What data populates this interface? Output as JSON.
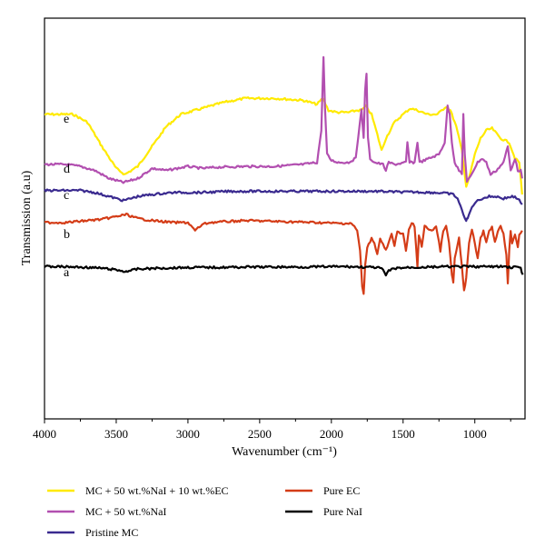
{
  "chart_data": {
    "type": "line",
    "title": "",
    "xlabel": "Wavenumber (cm⁻¹)",
    "ylabel": "Transmission (a.u)",
    "xlim": [
      4000,
      650
    ],
    "x_reversed": true,
    "grid": false,
    "legend_position": "bottom",
    "x_ticks": [
      4000,
      3500,
      3000,
      2500,
      2000,
      1500,
      1000
    ],
    "series": [
      {
        "name": "MC + 50 wt.%NaI + 10 wt.%EC",
        "trace_label": "e",
        "color": "#FFEA00",
        "points": [
          [
            4000,
            0.76
          ],
          [
            3900,
            0.76
          ],
          [
            3800,
            0.76
          ],
          [
            3700,
            0.74
          ],
          [
            3600,
            0.68
          ],
          [
            3500,
            0.625
          ],
          [
            3440,
            0.61
          ],
          [
            3350,
            0.63
          ],
          [
            3250,
            0.68
          ],
          [
            3150,
            0.73
          ],
          [
            3050,
            0.76
          ],
          [
            2950,
            0.77
          ],
          [
            2850,
            0.78
          ],
          [
            2750,
            0.79
          ],
          [
            2600,
            0.8
          ],
          [
            2400,
            0.8
          ],
          [
            2200,
            0.795
          ],
          [
            2100,
            0.785
          ],
          [
            2060,
            0.8
          ],
          [
            2020,
            0.77
          ],
          [
            1960,
            0.765
          ],
          [
            1880,
            0.765
          ],
          [
            1820,
            0.77
          ],
          [
            1790,
            0.77
          ],
          [
            1760,
            0.78
          ],
          [
            1720,
            0.76
          ],
          [
            1680,
            0.71
          ],
          [
            1650,
            0.67
          ],
          [
            1620,
            0.7
          ],
          [
            1560,
            0.74
          ],
          [
            1500,
            0.76
          ],
          [
            1450,
            0.775
          ],
          [
            1400,
            0.77
          ],
          [
            1330,
            0.76
          ],
          [
            1260,
            0.76
          ],
          [
            1200,
            0.78
          ],
          [
            1170,
            0.77
          ],
          [
            1130,
            0.73
          ],
          [
            1090,
            0.67
          ],
          [
            1060,
            0.58
          ],
          [
            1040,
            0.6
          ],
          [
            1000,
            0.66
          ],
          [
            960,
            0.7
          ],
          [
            920,
            0.72
          ],
          [
            880,
            0.725
          ],
          [
            820,
            0.7
          ],
          [
            760,
            0.69
          ],
          [
            720,
            0.65
          ],
          [
            690,
            0.64
          ],
          [
            670,
            0.56
          ]
        ]
      },
      {
        "name": "MC + 50 wt.%NaI",
        "trace_label": "d",
        "color": "#B24FB0",
        "points": [
          [
            4000,
            0.635
          ],
          [
            3850,
            0.635
          ],
          [
            3750,
            0.63
          ],
          [
            3650,
            0.62
          ],
          [
            3550,
            0.6
          ],
          [
            3450,
            0.59
          ],
          [
            3350,
            0.6
          ],
          [
            3250,
            0.625
          ],
          [
            3150,
            0.62
          ],
          [
            3000,
            0.63
          ],
          [
            2900,
            0.625
          ],
          [
            2800,
            0.628
          ],
          [
            2600,
            0.63
          ],
          [
            2400,
            0.63
          ],
          [
            2200,
            0.635
          ],
          [
            2100,
            0.64
          ],
          [
            2070,
            0.72
          ],
          [
            2055,
            0.905
          ],
          [
            2045,
            0.78
          ],
          [
            2030,
            0.66
          ],
          [
            2000,
            0.645
          ],
          [
            1950,
            0.64
          ],
          [
            1880,
            0.64
          ],
          [
            1830,
            0.65
          ],
          [
            1805,
            0.73
          ],
          [
            1790,
            0.77
          ],
          [
            1775,
            0.7
          ],
          [
            1765,
            0.82
          ],
          [
            1755,
            0.86
          ],
          [
            1745,
            0.7
          ],
          [
            1730,
            0.65
          ],
          [
            1700,
            0.64
          ],
          [
            1640,
            0.635
          ],
          [
            1620,
            0.62
          ],
          [
            1600,
            0.64
          ],
          [
            1560,
            0.635
          ],
          [
            1480,
            0.64
          ],
          [
            1470,
            0.69
          ],
          [
            1455,
            0.64
          ],
          [
            1420,
            0.64
          ],
          [
            1400,
            0.69
          ],
          [
            1385,
            0.64
          ],
          [
            1320,
            0.65
          ],
          [
            1250,
            0.66
          ],
          [
            1210,
            0.69
          ],
          [
            1190,
            0.78
          ],
          [
            1175,
            0.76
          ],
          [
            1160,
            0.69
          ],
          [
            1140,
            0.64
          ],
          [
            1110,
            0.62
          ],
          [
            1090,
            0.61
          ],
          [
            1080,
            0.76
          ],
          [
            1070,
            0.66
          ],
          [
            1055,
            0.59
          ],
          [
            1040,
            0.6
          ],
          [
            1010,
            0.62
          ],
          [
            980,
            0.64
          ],
          [
            950,
            0.65
          ],
          [
            920,
            0.64
          ],
          [
            890,
            0.61
          ],
          [
            850,
            0.62
          ],
          [
            800,
            0.64
          ],
          [
            770,
            0.68
          ],
          [
            750,
            0.62
          ],
          [
            720,
            0.65
          ],
          [
            700,
            0.62
          ],
          [
            680,
            0.62
          ],
          [
            670,
            0.6
          ]
        ]
      },
      {
        "name": "Pristine MC",
        "trace_label": "c",
        "color": "#3A2A8F",
        "points": [
          [
            4000,
            0.57
          ],
          [
            3850,
            0.57
          ],
          [
            3750,
            0.57
          ],
          [
            3650,
            0.565
          ],
          [
            3550,
            0.555
          ],
          [
            3450,
            0.545
          ],
          [
            3350,
            0.555
          ],
          [
            3250,
            0.56
          ],
          [
            3100,
            0.565
          ],
          [
            2900,
            0.565
          ],
          [
            2700,
            0.568
          ],
          [
            2500,
            0.568
          ],
          [
            2300,
            0.568
          ],
          [
            2100,
            0.568
          ],
          [
            1900,
            0.568
          ],
          [
            1700,
            0.568
          ],
          [
            1500,
            0.566
          ],
          [
            1400,
            0.566
          ],
          [
            1300,
            0.565
          ],
          [
            1200,
            0.563
          ],
          [
            1150,
            0.56
          ],
          [
            1120,
            0.55
          ],
          [
            1090,
            0.52
          ],
          [
            1060,
            0.495
          ],
          [
            1050,
            0.5
          ],
          [
            1030,
            0.52
          ],
          [
            1000,
            0.54
          ],
          [
            950,
            0.55
          ],
          [
            900,
            0.555
          ],
          [
            850,
            0.555
          ],
          [
            800,
            0.55
          ],
          [
            740,
            0.555
          ],
          [
            700,
            0.55
          ],
          [
            670,
            0.535
          ]
        ]
      },
      {
        "name": "Pure EC",
        "trace_label": "b",
        "color": "#D43C17",
        "points": [
          [
            4000,
            0.49
          ],
          [
            3850,
            0.49
          ],
          [
            3700,
            0.495
          ],
          [
            3600,
            0.498
          ],
          [
            3500,
            0.505
          ],
          [
            3430,
            0.51
          ],
          [
            3350,
            0.5
          ],
          [
            3250,
            0.495
          ],
          [
            3100,
            0.49
          ],
          [
            3000,
            0.49
          ],
          [
            2950,
            0.47
          ],
          [
            2900,
            0.485
          ],
          [
            2850,
            0.49
          ],
          [
            2600,
            0.495
          ],
          [
            2300,
            0.492
          ],
          [
            2100,
            0.49
          ],
          [
            1950,
            0.488
          ],
          [
            1860,
            0.488
          ],
          [
            1820,
            0.47
          ],
          [
            1800,
            0.42
          ],
          [
            1785,
            0.33
          ],
          [
            1775,
            0.31
          ],
          [
            1765,
            0.38
          ],
          [
            1750,
            0.43
          ],
          [
            1720,
            0.45
          ],
          [
            1700,
            0.44
          ],
          [
            1680,
            0.41
          ],
          [
            1660,
            0.45
          ],
          [
            1620,
            0.42
          ],
          [
            1580,
            0.46
          ],
          [
            1560,
            0.43
          ],
          [
            1540,
            0.47
          ],
          [
            1500,
            0.46
          ],
          [
            1480,
            0.42
          ],
          [
            1460,
            0.47
          ],
          [
            1440,
            0.49
          ],
          [
            1420,
            0.48
          ],
          [
            1400,
            0.38
          ],
          [
            1390,
            0.46
          ],
          [
            1370,
            0.43
          ],
          [
            1350,
            0.48
          ],
          [
            1300,
            0.47
          ],
          [
            1270,
            0.48
          ],
          [
            1240,
            0.42
          ],
          [
            1220,
            0.47
          ],
          [
            1200,
            0.48
          ],
          [
            1180,
            0.44
          ],
          [
            1160,
            0.36
          ],
          [
            1150,
            0.34
          ],
          [
            1140,
            0.4
          ],
          [
            1110,
            0.45
          ],
          [
            1090,
            0.38
          ],
          [
            1075,
            0.32
          ],
          [
            1060,
            0.35
          ],
          [
            1040,
            0.44
          ],
          [
            1020,
            0.47
          ],
          [
            1000,
            0.44
          ],
          [
            980,
            0.4
          ],
          [
            960,
            0.45
          ],
          [
            940,
            0.47
          ],
          [
            920,
            0.44
          ],
          [
            900,
            0.47
          ],
          [
            880,
            0.48
          ],
          [
            860,
            0.44
          ],
          [
            840,
            0.47
          ],
          [
            820,
            0.48
          ],
          [
            800,
            0.46
          ],
          [
            780,
            0.41
          ],
          [
            770,
            0.34
          ],
          [
            760,
            0.42
          ],
          [
            750,
            0.47
          ],
          [
            740,
            0.44
          ],
          [
            720,
            0.46
          ],
          [
            700,
            0.43
          ],
          [
            690,
            0.46
          ],
          [
            670,
            0.47
          ]
        ]
      },
      {
        "name": "Pure NaI",
        "trace_label": "a",
        "color": "#000000",
        "points": [
          [
            4000,
            0.38
          ],
          [
            3900,
            0.38
          ],
          [
            3800,
            0.379
          ],
          [
            3700,
            0.378
          ],
          [
            3600,
            0.376
          ],
          [
            3500,
            0.372
          ],
          [
            3450,
            0.368
          ],
          [
            3400,
            0.37
          ],
          [
            3350,
            0.374
          ],
          [
            3200,
            0.376
          ],
          [
            3000,
            0.378
          ],
          [
            2800,
            0.378
          ],
          [
            2600,
            0.379
          ],
          [
            2400,
            0.379
          ],
          [
            2200,
            0.379
          ],
          [
            2000,
            0.38
          ],
          [
            1900,
            0.38
          ],
          [
            1800,
            0.379
          ],
          [
            1700,
            0.378
          ],
          [
            1650,
            0.376
          ],
          [
            1620,
            0.358
          ],
          [
            1600,
            0.37
          ],
          [
            1550,
            0.376
          ],
          [
            1450,
            0.378
          ],
          [
            1300,
            0.379
          ],
          [
            1200,
            0.38
          ],
          [
            1100,
            0.38
          ],
          [
            1000,
            0.38
          ],
          [
            900,
            0.38
          ],
          [
            800,
            0.38
          ],
          [
            740,
            0.378
          ],
          [
            700,
            0.38
          ],
          [
            680,
            0.375
          ],
          [
            665,
            0.36
          ]
        ]
      }
    ]
  }
}
